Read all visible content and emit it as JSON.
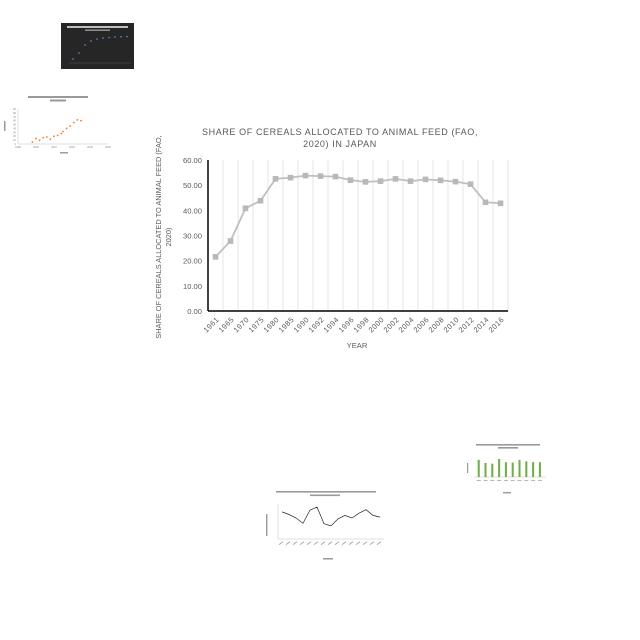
{
  "main_chart": {
    "title": "SHARE OF CEREALS ALLOCATED TO ANIMAL FEED (FAO, 2020)  IN JAPAN",
    "title_line1": "SHARE OF CEREALS ALLOCATED TO ANIMAL FEED (FAO,",
    "title_line2": "2020)  IN JAPAN",
    "ylabel_line1": "SHARE OF CEREALS ALLOCATED TO ANIMAL FEED (FAO,",
    "ylabel_line2": "2020)",
    "xlabel": "YEAR",
    "y_ticks": [
      "60.00",
      "50.00",
      "40.00",
      "30.00",
      "20.00",
      "10.00",
      "0.00"
    ]
  },
  "chart_data": [
    {
      "type": "line",
      "title": "SHARE OF CEREALS ALLOCATED TO ANIMAL FEED (FAO, 2020)  IN JAPAN",
      "xlabel": "YEAR",
      "ylabel": "SHARE OF CEREALS ALLOCATED TO ANIMAL FEED (FAO, 2020)",
      "categories": [
        "1961",
        "1965",
        "1970",
        "1975",
        "1980",
        "1985",
        "1990",
        "1992",
        "1994",
        "1996",
        "1998",
        "2000",
        "2002",
        "2004",
        "2006",
        "2008",
        "2010",
        "2012",
        "2014",
        "2016"
      ],
      "values": [
        21.5,
        27.8,
        40.8,
        43.8,
        52.5,
        53.0,
        53.8,
        53.6,
        53.4,
        52.0,
        51.3,
        51.6,
        52.5,
        51.6,
        52.3,
        51.9,
        51.4,
        50.4,
        43.2,
        42.8
      ],
      "ylim": [
        0,
        60
      ],
      "grid": "vertical",
      "colors": {
        "line": "#bfbfbf",
        "marker": "#b8b8b8",
        "grid": "#d9d9d9"
      }
    },
    {
      "type": "scatter",
      "title": "Percentage of People who are net smokers in Morris Island",
      "xlabel": "Years",
      "ylabel": "Percentage",
      "x_ticks": [
        "1990",
        "2000",
        "2010",
        "2020",
        "2030",
        "2040"
      ],
      "y_ticks": [
        "90",
        "80",
        "70",
        "60",
        "50",
        "40",
        "30",
        "20",
        "10",
        "0"
      ],
      "points": [
        [
          1998,
          5
        ],
        [
          2000,
          14
        ],
        [
          2002,
          10
        ],
        [
          2004,
          16
        ],
        [
          2006,
          18
        ],
        [
          2008,
          12
        ],
        [
          2010,
          20
        ],
        [
          2012,
          22
        ],
        [
          2014,
          27
        ],
        [
          2015,
          32
        ],
        [
          2017,
          40
        ],
        [
          2019,
          46
        ],
        [
          2021,
          55
        ],
        [
          2023,
          62
        ],
        [
          2025,
          60
        ]
      ],
      "colors": {
        "marker": "#ed7d31"
      }
    },
    {
      "type": "line",
      "title": "Cumulative share of the population with emissions 1950-2016",
      "colors": {
        "background": "#262626",
        "marker": "#5b9bd5"
      }
    },
    {
      "type": "bar",
      "title": "Sex ratio for age (65 year olds) (UNWPP, 2017) in the Year 2016",
      "values": [
        0.95,
        0.78,
        0.74,
        1.0,
        0.82,
        0.8,
        0.95,
        0.87,
        0.83,
        0.82
      ],
      "colors": {
        "bar": "#70ad47"
      }
    },
    {
      "type": "line",
      "title": "Air quality: Emissions on the intensively farmed land (Cattle Feeding, Carbon) in 2014",
      "xlabel": "Country",
      "ylabel": "Share of air quality",
      "values": [
        6.2,
        5.6,
        4.8,
        3.6,
        6.6,
        7.3,
        3.5,
        3.0,
        4.6,
        5.4,
        4.8,
        5.9,
        6.7,
        5.4,
        5.0
      ],
      "colors": {
        "line": "#262626"
      }
    }
  ]
}
